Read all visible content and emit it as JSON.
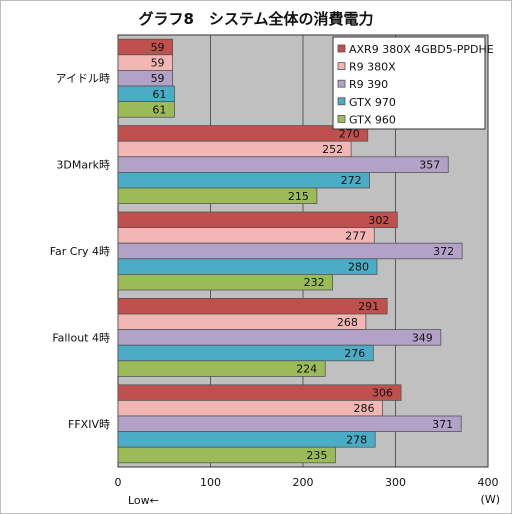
{
  "chart_data": {
    "type": "bar",
    "orientation": "horizontal",
    "title": "グラフ8　システム全体の消費電力",
    "categories": [
      "アイドル時",
      "3DMark時",
      "Far Cry 4時",
      "Fallout 4時",
      "FFXIV時"
    ],
    "series": [
      {
        "name": "AXR9 380X 4GBD5-PPDHE",
        "color": "#c0504d",
        "values": [
          59,
          270,
          302,
          291,
          306
        ]
      },
      {
        "name": "R9 380X",
        "color": "#f2b6b4",
        "values": [
          59,
          252,
          277,
          268,
          286
        ]
      },
      {
        "name": "R9 390",
        "color": "#b3a2c7",
        "values": [
          59,
          357,
          372,
          349,
          371
        ]
      },
      {
        "name": "GTX 970",
        "color": "#4bacc6",
        "values": [
          61,
          272,
          280,
          276,
          278
        ]
      },
      {
        "name": "GTX 960",
        "color": "#9bbb59",
        "values": [
          61,
          215,
          232,
          224,
          235
        ]
      }
    ],
    "xlim": [
      0,
      400
    ],
    "xticks": [
      0,
      100,
      200,
      300,
      400
    ],
    "xunit": "(W)",
    "note": "Low←",
    "grid": true,
    "legend_position": "top-right",
    "plot_background": "#c0c0c0"
  }
}
